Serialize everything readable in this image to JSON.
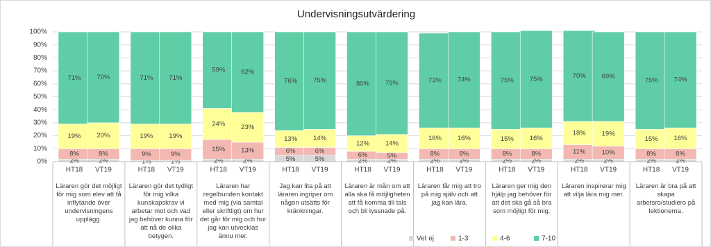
{
  "chart_data": {
    "type": "stacked_bar",
    "title": "Undervisningsutvärdering",
    "categories": [
      "HT18",
      "VT19",
      "HT18",
      "VT19",
      "HT18",
      "VT19",
      "HT18",
      "VT19",
      "HT18",
      "VT19",
      "HT18",
      "VT19",
      "HT18",
      "VT19",
      "HT18",
      "VT19",
      "HT18",
      "VT19"
    ],
    "groups": [
      "Läraren gör det möjligt för mig som elev att få inflytande över undervisningens upplägg.",
      "Läraren gör det tydligt för mig vilka kunskapskrav vi arbetar mot och vad jag behöver kunna för att nå de olika betygen.",
      "Läraren har regelbunden kontakt med mig (via samtal eller skriftligt) om hur det går för mig och hur jag kan utvecklas ännu mer.",
      "Jag kan lita på att läraren ingriper om någon utsätts för kränkningar.",
      "Läraren är mån om att alla ska få möjligheten att få komma till tals och bli lyssnade på.",
      "Läraren får mig att tro på mig själv och att jag kan lära.",
      "Läraren ger mig den hjälp jag behöver för att det ska gå så bra som möjligt för mig.",
      "Läraren inspirerar mig att vilja lära mig mer.",
      "Läraren är bra på att skapa arbetsro/studiero på lektionerna."
    ],
    "series": [
      {
        "name": "Vet ej",
        "color": "#d9d9d9",
        "values": [
          2,
          2,
          1,
          1,
          2,
          2,
          5,
          5,
          2,
          2,
          2,
          2,
          2,
          2,
          2,
          2,
          2,
          2
        ],
        "value_labels": [
          "2%",
          "2%",
          "1%",
          "1%",
          "2%",
          "2%",
          "5%",
          "5%",
          "2%",
          "2%",
          "2%",
          "2%",
          "2%",
          "2%",
          "2%",
          "2%",
          "2%",
          "2%"
        ]
      },
      {
        "name": "1-3",
        "color": "#f4b8b2",
        "values": [
          8,
          8,
          9,
          9,
          15,
          13,
          6,
          6,
          6,
          5,
          8,
          8,
          8,
          8,
          11,
          10,
          8,
          8
        ],
        "value_labels": [
          "8%",
          "8%",
          "9%",
          "9%",
          "15%",
          "13%",
          "6%",
          "6%",
          "6%",
          "5%",
          "8%",
          "8%",
          "8%",
          "8%",
          "11%",
          "10%",
          "8%",
          "8%"
        ]
      },
      {
        "name": "4-6",
        "color": "#ffff99",
        "values": [
          19,
          20,
          19,
          19,
          24,
          23,
          13,
          14,
          12,
          14,
          16,
          16,
          15,
          16,
          18,
          19,
          15,
          16
        ],
        "value_labels": [
          "19%",
          "20%",
          "19%",
          "19%",
          "24%",
          "23%",
          "13%",
          "14%",
          "12%",
          "14%",
          "16%",
          "16%",
          "15%",
          "16%",
          "18%",
          "19%",
          "15%",
          "16%"
        ]
      },
      {
        "name": "7-10",
        "color": "#5fcea6",
        "values": [
          71,
          70,
          71,
          71,
          59,
          62,
          76,
          75,
          80,
          79,
          73,
          74,
          75,
          75,
          70,
          69,
          75,
          74
        ],
        "value_labels": [
          "71%",
          "70%",
          "71%",
          "71%",
          "59%",
          "62%",
          "76%",
          "75%",
          "80%",
          "79%",
          "73%",
          "74%",
          "75%",
          "75%",
          "70%",
          "69%",
          "75%",
          "74%"
        ]
      }
    ],
    "ylim": [
      0,
      100
    ],
    "yticks": [
      {
        "value": 0,
        "label": "0%"
      },
      {
        "value": 10,
        "label": "10%"
      },
      {
        "value": 20,
        "label": "20%"
      },
      {
        "value": 30,
        "label": "30%"
      },
      {
        "value": 40,
        "label": "40%"
      },
      {
        "value": 50,
        "label": "50%"
      },
      {
        "value": 60,
        "label": "60%"
      },
      {
        "value": 70,
        "label": "70%"
      },
      {
        "value": 80,
        "label": "80%"
      },
      {
        "value": 90,
        "label": "90%"
      },
      {
        "value": 100,
        "label": "100%"
      }
    ],
    "grid": true
  }
}
